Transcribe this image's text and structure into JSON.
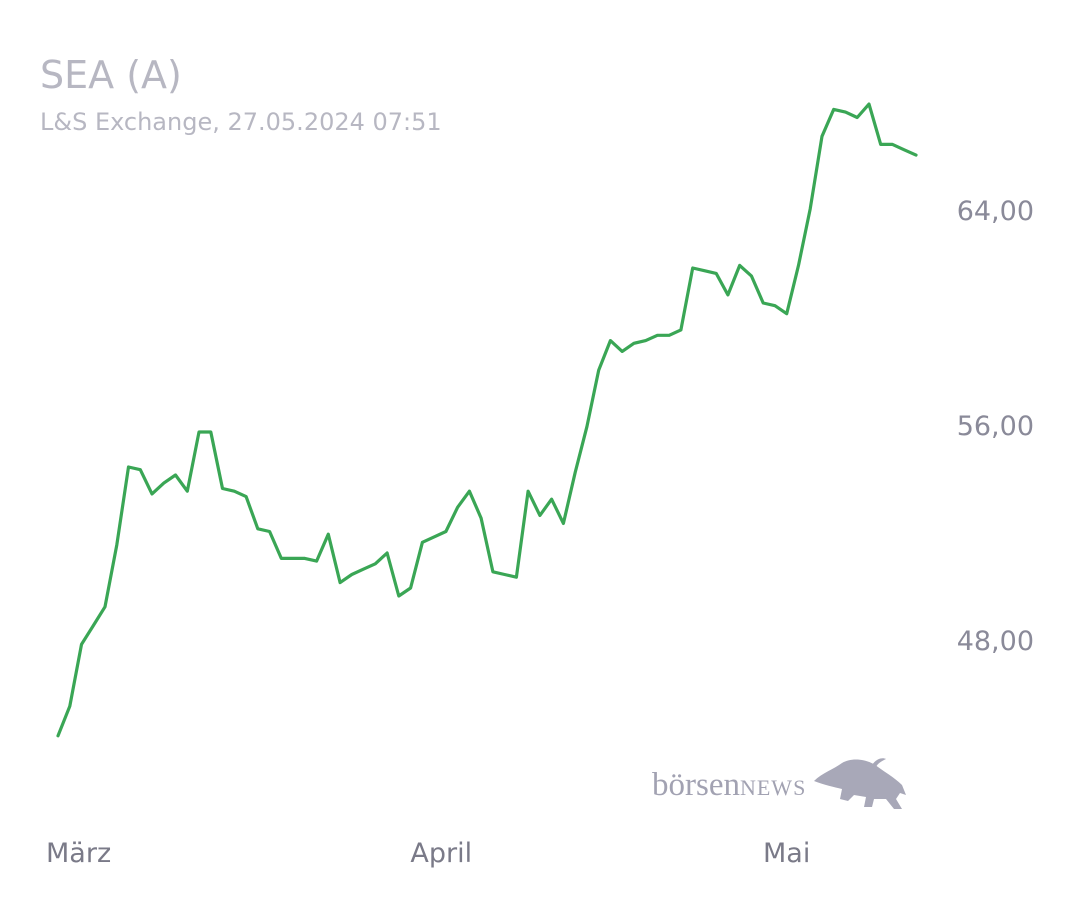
{
  "chart_data": {
    "type": "line",
    "title": "SEA (A)",
    "subtitle": "L&S Exchange, 27.05.2024 07:51",
    "xlabel": "",
    "ylabel": "",
    "x_tick_labels": [
      {
        "label": "März",
        "index": 0
      },
      {
        "label": "April",
        "index": 31
      },
      {
        "label": "Mai",
        "index": 61
      }
    ],
    "y_ticks": [
      {
        "value": 48,
        "label": "48,00"
      },
      {
        "value": 56,
        "label": "56,00"
      },
      {
        "value": 64,
        "label": "64,00"
      }
    ],
    "ylim": [
      43.5,
      68.2
    ],
    "grid": false,
    "line_color": "#3aa655",
    "series": [
      {
        "values": [
          44.4,
          45.5,
          47.8,
          48.5,
          49.2,
          51.5,
          54.4,
          54.3,
          53.4,
          53.8,
          54.1,
          53.5,
          55.7,
          55.7,
          53.6,
          53.5,
          53.3,
          52.1,
          52.0,
          51.0,
          51.0,
          51.0,
          50.9,
          51.9,
          50.1,
          50.4,
          50.6,
          50.8,
          51.2,
          49.6,
          49.9,
          51.6,
          51.8,
          52.0,
          52.9,
          53.5,
          52.5,
          50.5,
          50.4,
          50.3,
          53.5,
          52.6,
          53.2,
          52.3,
          54.2,
          55.9,
          58.0,
          59.1,
          58.7,
          59.0,
          59.1,
          59.3,
          59.3,
          59.5,
          61.8,
          61.7,
          61.6,
          60.8,
          61.9,
          61.5,
          60.5,
          60.4,
          60.1,
          61.9,
          64.0,
          66.7,
          67.7,
          67.6,
          67.4,
          67.9,
          66.4,
          66.4,
          66.2,
          66.0
        ]
      }
    ]
  },
  "watermark": {
    "brand_lower": "börsen",
    "brand_upper": "NEWS",
    "icon": "bull-icon"
  }
}
